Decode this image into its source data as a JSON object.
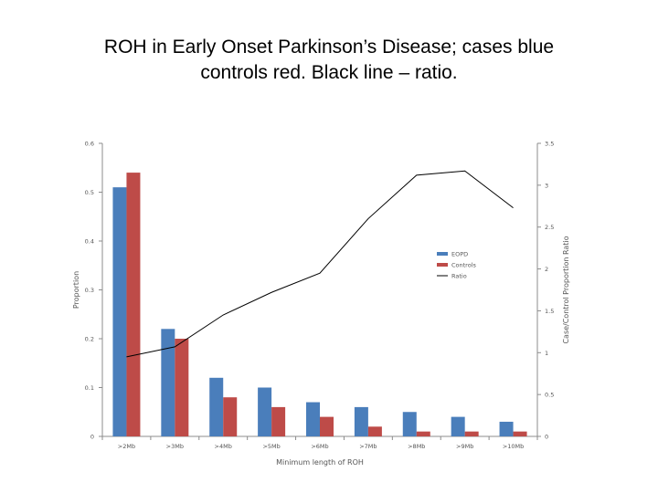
{
  "slide": {
    "title_line1": "ROH in Early Onset Parkinson’s Disease; cases blue",
    "title_line2": "controls red. Black line – ratio."
  },
  "chart_data": {
    "type": "bar",
    "categories": [
      ">2Mb",
      ">3Mb",
      ">4Mb",
      ">5Mb",
      ">6Mb",
      ">7Mb",
      ">8Mb",
      ">9Mb",
      ">10Mb"
    ],
    "series": [
      {
        "name": "EOPD",
        "axis": "left",
        "color": "#4a7ebb",
        "values": [
          0.51,
          0.22,
          0.12,
          0.1,
          0.07,
          0.06,
          0.05,
          0.04,
          0.03
        ]
      },
      {
        "name": "Controls",
        "axis": "left",
        "color": "#be4b48",
        "values": [
          0.54,
          0.2,
          0.08,
          0.06,
          0.04,
          0.02,
          0.01,
          0.01,
          0.01
        ]
      },
      {
        "name": "Ratio",
        "axis": "right",
        "type": "line",
        "color": "#000000",
        "values": [
          0.95,
          1.07,
          1.45,
          1.72,
          1.95,
          2.6,
          3.12,
          3.17,
          2.73
        ]
      }
    ],
    "xlabel": "Minimum length of ROH",
    "ylabel": "Proportion",
    "y2label": "Case/Control Proportion Ratio",
    "ylim": [
      0,
      0.6
    ],
    "y2lim": [
      0,
      3.5
    ],
    "yticks": [
      "0",
      "0.1",
      "0.2",
      "0.3",
      "0.4",
      "0.5",
      "0.6"
    ],
    "y2ticks": [
      "0",
      "0.5",
      "1",
      "1.5",
      "2",
      "2.5",
      "3",
      "3.5"
    ],
    "grid": false,
    "legend": "right-middle"
  }
}
